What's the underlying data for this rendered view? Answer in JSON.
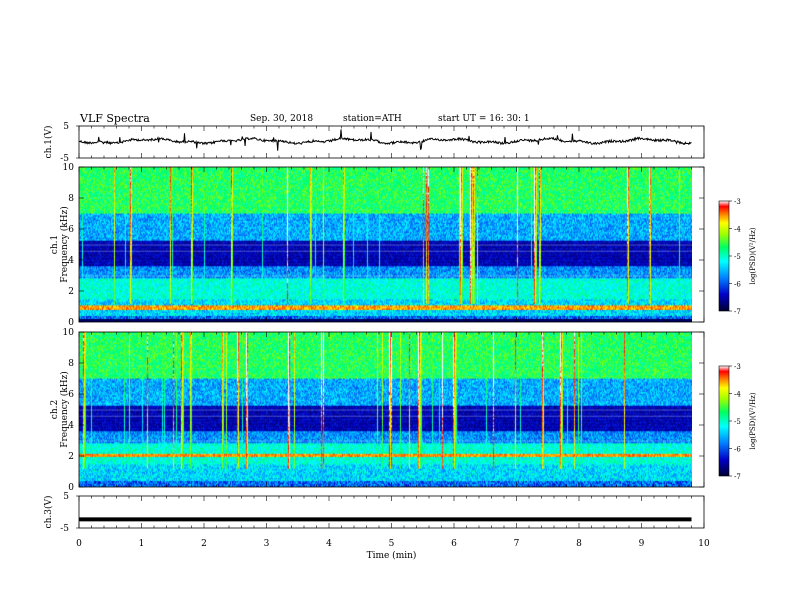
{
  "header": {
    "title": "VLF  Spectra",
    "date": "Sep. 30, 2018",
    "station": "station=ATH",
    "start_ut": "start  UT  =    16: 30: 1"
  },
  "chart_data": [
    {
      "type": "line",
      "panel": "ch1-waveform",
      "ylabel": "ch.1(V)",
      "ylim": [
        -5,
        5
      ],
      "yticks": [
        "5",
        "-5"
      ],
      "x_range_min": [
        0,
        10
      ],
      "series": [
        {
          "values_note_free": true,
          "x": [
            0,
            9.8
          ],
          "y": [
            0,
            0
          ]
        }
      ]
    },
    {
      "type": "heatmap",
      "panel": "ch1-spectrogram",
      "ylabel": "ch.1\nFrequency (kHz)",
      "ylim": [
        0,
        10
      ],
      "yticks": [
        "0",
        "2",
        "4",
        "6",
        "8",
        "10"
      ],
      "colorbar": {
        "label": "log(PSD)(V²/Hz)",
        "range": [
          -7,
          -3
        ],
        "ticks": [
          "-3",
          "-4",
          "-5",
          "-6",
          "-7"
        ]
      },
      "bands_khz": [
        [
          0.9,
          1.1
        ],
        [
          2.0,
          2.6
        ]
      ]
    },
    {
      "type": "heatmap",
      "panel": "ch2-spectrogram",
      "ylabel": "ch.2\nFrequency (kHz)",
      "ylim": [
        0,
        10
      ],
      "yticks": [
        "0",
        "2",
        "4",
        "6",
        "8",
        "10"
      ],
      "colorbar": {
        "label": "log(PSD)(V²/Hz)",
        "range": [
          -7,
          -3
        ],
        "ticks": [
          "-3",
          "-4",
          "-5",
          "-6",
          "-7"
        ]
      },
      "bands_khz": [
        [
          1.9,
          2.1
        ],
        [
          2.0,
          2.8
        ]
      ]
    },
    {
      "type": "line",
      "panel": "ch3-waveform",
      "ylabel": "ch.3(V)",
      "ylim": [
        -5,
        5
      ],
      "yticks": [
        "5",
        "-5"
      ],
      "series": [
        {
          "x": [
            0,
            9.8
          ],
          "y": [
            -2.3,
            -2.3
          ]
        }
      ]
    }
  ],
  "xaxis": {
    "label": "Time  (min)",
    "range": [
      0,
      10
    ],
    "ticks": [
      "0",
      "1",
      "2",
      "3",
      "4",
      "5",
      "6",
      "7",
      "8",
      "9",
      "10"
    ]
  },
  "colors": {
    "scale": [
      "#000040",
      "#0000c8",
      "#0064ff",
      "#00c8ff",
      "#00ff96",
      "#64ff00",
      "#ffff00",
      "#ff8c00",
      "#ff0000",
      "#ffffff"
    ]
  }
}
